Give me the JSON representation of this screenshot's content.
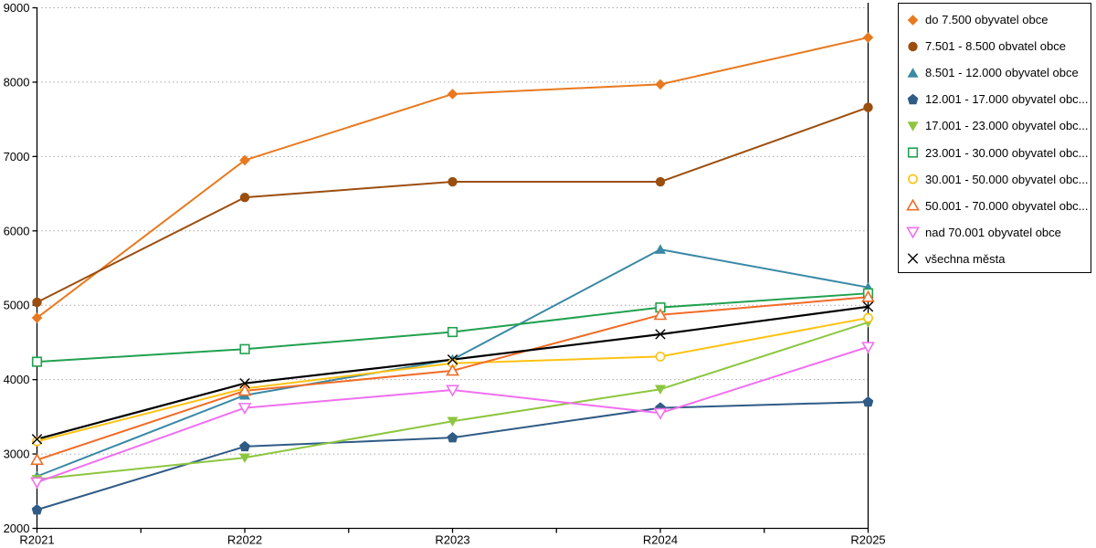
{
  "chart_data": {
    "type": "line",
    "categories": [
      "R2021",
      "R2022",
      "R2023",
      "R2024",
      "R2025"
    ],
    "series": [
      {
        "name": "do 7.500 obyvatel obce",
        "marker": "diamond",
        "color": "#E8791E",
        "values": [
          4830,
          6950,
          7840,
          7970,
          8600
        ]
      },
      {
        "name": "7.501 - 8.500 obvatel obce",
        "marker": "circle",
        "color": "#9C4E0E",
        "values": [
          5040,
          6450,
          6660,
          6660,
          7660
        ]
      },
      {
        "name": "8.501 - 12.000 obyvatel obce",
        "marker": "triangle-up",
        "color": "#3A89A5",
        "values": [
          2700,
          3790,
          4270,
          5750,
          5240
        ]
      },
      {
        "name": "12.001 - 17.000 obyvatel obc...",
        "marker": "pentagon",
        "color": "#2F5B85",
        "values": [
          2250,
          3100,
          3220,
          3620,
          3700
        ]
      },
      {
        "name": "17.001 - 23.000 obyvatel obc...",
        "marker": "triangle-down",
        "color": "#8CC63F",
        "values": [
          2660,
          2950,
          3440,
          3870,
          4770
        ]
      },
      {
        "name": "23.001 - 30.000 obyvatel obc...",
        "marker": "square-open",
        "color": "#21A14F",
        "values": [
          4240,
          4410,
          4640,
          4970,
          5160
        ]
      },
      {
        "name": "30.001 - 50.000 obyvatel obc...",
        "marker": "circle-open",
        "color": "#FFC211",
        "values": [
          3170,
          3880,
          4220,
          4310,
          4830
        ]
      },
      {
        "name": "50.001 - 70.000 obyvatel obc...",
        "marker": "triangle-up-open",
        "color": "#F06C26",
        "values": [
          2920,
          3850,
          4120,
          4870,
          5110
        ]
      },
      {
        "name": "nad 70.001 obyvatel obce",
        "marker": "triangle-down-open",
        "color": "#F06FF0",
        "values": [
          2620,
          3620,
          3860,
          3550,
          4440
        ]
      },
      {
        "name": "všechna města",
        "marker": "x-cross",
        "color": "#000000",
        "values": [
          3200,
          3950,
          4270,
          4610,
          4980
        ]
      }
    ],
    "title": "",
    "xlabel": "",
    "ylabel": "",
    "ylim": [
      2000,
      9000
    ],
    "ytick_step": 1000,
    "ytick_labels": [
      "2000",
      "3000",
      "4000",
      "5000",
      "6000",
      "7000",
      "8000",
      "9000"
    ],
    "grid": "horizontal dotted lines at every 1000",
    "legend_position": "right"
  },
  "colors": {
    "background": "#ffffff",
    "axis": "#000000",
    "gridline": "#a8a8a8",
    "legend_border": "#000000",
    "tick_label": "#000000"
  }
}
